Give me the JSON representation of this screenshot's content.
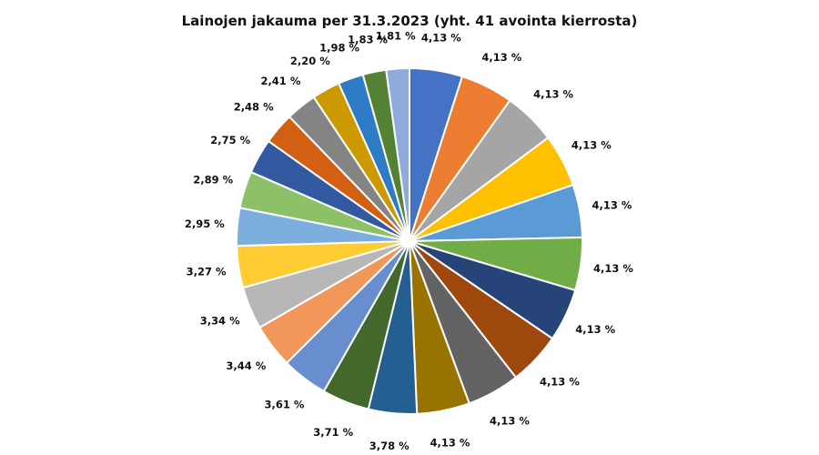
{
  "chart_data": {
    "type": "pie",
    "title": "Lainojen jakauma per 31.3.2023  (yht. 41 avointa kierrosta)",
    "slices": [
      {
        "value": 4.13,
        "label": "4,13 %",
        "color": "#4472C4"
      },
      {
        "value": 4.13,
        "label": "4,13 %",
        "color": "#ED7D31"
      },
      {
        "value": 4.13,
        "label": "4,13 %",
        "color": "#A5A5A5"
      },
      {
        "value": 4.13,
        "label": "4,13 %",
        "color": "#FFC000"
      },
      {
        "value": 4.13,
        "label": "4,13 %",
        "color": "#5B9BD5"
      },
      {
        "value": 4.13,
        "label": "4,13 %",
        "color": "#70AD47"
      },
      {
        "value": 4.13,
        "label": "4,13 %",
        "color": "#264478"
      },
      {
        "value": 4.13,
        "label": "4,13 %",
        "color": "#9E480E"
      },
      {
        "value": 4.13,
        "label": "4,13 %",
        "color": "#636363"
      },
      {
        "value": 4.13,
        "label": "4,13 %",
        "color": "#997300"
      },
      {
        "value": 3.78,
        "label": "3,78 %",
        "color": "#255E91"
      },
      {
        "value": 3.71,
        "label": "3,71 %",
        "color": "#43682B"
      },
      {
        "value": 3.61,
        "label": "3,61 %",
        "color": "#698ED0"
      },
      {
        "value": 3.44,
        "label": "3,44 %",
        "color": "#F1975A"
      },
      {
        "value": 3.34,
        "label": "3,34 %",
        "color": "#B7B7B7"
      },
      {
        "value": 3.27,
        "label": "3,27 %",
        "color": "#FFCD33"
      },
      {
        "value": 2.95,
        "label": "2,95 %",
        "color": "#7CAFDD"
      },
      {
        "value": 2.89,
        "label": "2,89 %",
        "color": "#8CC168"
      },
      {
        "value": 2.75,
        "label": "2,75 %",
        "color": "#335AA1"
      },
      {
        "value": 2.48,
        "label": "2,48 %",
        "color": "#D26012"
      },
      {
        "value": 2.41,
        "label": "2,41 %",
        "color": "#848484"
      },
      {
        "value": 2.2,
        "label": "2,20 %",
        "color": "#CC9A00"
      },
      {
        "value": 1.98,
        "label": "1,98 %",
        "color": "#2E7BC6"
      },
      {
        "value": 1.83,
        "label": "1,83 %",
        "color": "#548235"
      },
      {
        "value": 1.81,
        "label": "1,81 %",
        "color": "#8FAADC"
      }
    ]
  }
}
